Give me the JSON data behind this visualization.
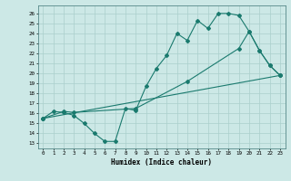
{
  "xlabel": "Humidex (Indice chaleur)",
  "bg_color": "#cce8e6",
  "line_color": "#1a7a6e",
  "grid_color": "#aacfcc",
  "xlim": [
    -0.5,
    23.5
  ],
  "ylim": [
    12.5,
    26.8
  ],
  "xticks": [
    0,
    1,
    2,
    3,
    4,
    5,
    6,
    7,
    8,
    9,
    10,
    11,
    12,
    13,
    14,
    15,
    16,
    17,
    18,
    19,
    20,
    21,
    22,
    23
  ],
  "yticks": [
    13,
    14,
    15,
    16,
    17,
    18,
    19,
    20,
    21,
    22,
    23,
    24,
    25,
    26
  ],
  "line1_x": [
    0,
    1,
    2,
    3,
    4,
    5,
    6,
    7,
    8,
    9,
    10,
    11,
    12,
    13,
    14,
    15,
    16,
    17,
    18,
    19,
    20,
    21,
    22,
    23
  ],
  "line1_y": [
    15.5,
    16.2,
    16.1,
    15.8,
    15.0,
    14.0,
    13.2,
    13.2,
    16.5,
    16.3,
    18.7,
    20.5,
    21.8,
    24.0,
    23.3,
    25.3,
    24.5,
    26.0,
    26.0,
    25.8,
    24.2,
    22.3,
    20.8,
    19.8
  ],
  "line2_x": [
    0,
    2,
    3,
    9,
    14,
    19,
    20,
    21,
    22,
    23
  ],
  "line2_y": [
    15.5,
    16.2,
    16.1,
    16.5,
    19.2,
    22.5,
    24.2,
    22.3,
    20.8,
    19.8
  ],
  "line3_x": [
    0,
    23
  ],
  "line3_y": [
    15.5,
    19.8
  ]
}
